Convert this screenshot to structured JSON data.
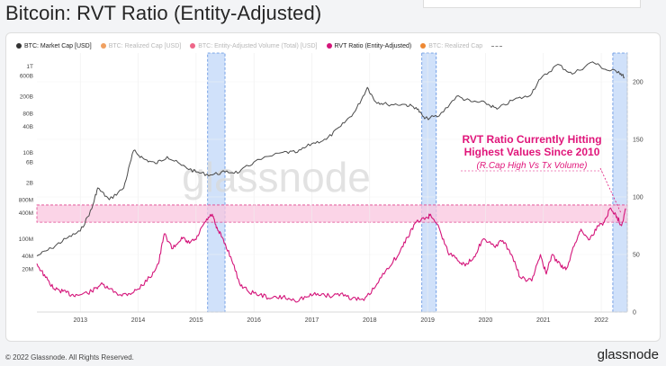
{
  "page": {
    "title": "Bitcoin: RVT Ratio (Entity-Adjusted)"
  },
  "legend": [
    {
      "label": "BTC: Market Cap [USD]",
      "color": "#333333",
      "active": true
    },
    {
      "label": "BTC: Realized Cap [USD]",
      "color": "#f0a060",
      "active": false
    },
    {
      "label": "BTC: Entity-Adjusted Volume (Total) [USD]",
      "color": "#ee6688",
      "active": false
    },
    {
      "label": "RVT Ratio (Entity-Adjusted)",
      "color": "#d4157a",
      "active": true
    },
    {
      "label": "BTC: Realized Cap",
      "color": "#ee8833",
      "active": false
    }
  ],
  "annotation": {
    "line1": "RVT Ratio Currently Hitting",
    "line2": "Highest Values Since 2010",
    "line3": "(R.Cap High Vs Tx Volume)"
  },
  "watermark": "glassnode",
  "footer": {
    "copyright": "© 2022 Glassnode. All Rights Reserved.",
    "brand": "glassnode"
  },
  "colors": {
    "market_cap": "#4a4a4a",
    "rvt": "#d4157a",
    "band_fill": "#f9c6df",
    "band_stroke": "#e0448f",
    "highlight_fill": "#a9c9f5",
    "highlight_stroke": "#5a8ee0",
    "annotation": "#e0157a"
  },
  "chart_data": {
    "type": "line",
    "title": "Bitcoin: RVT Ratio (Entity-Adjusted)",
    "x_tick_labels": [
      "2013",
      "2014",
      "2015",
      "2016",
      "2017",
      "2018",
      "2019",
      "2020",
      "2021",
      "2022"
    ],
    "x_range": [
      2012.25,
      2022.45
    ],
    "y_left": {
      "scale": "log",
      "range_usd": [
        2000000.0,
        2000000000000.0
      ],
      "tick_labels": [
        "20M",
        "40M",
        "100M",
        "400M",
        "800M",
        "2B",
        "6B",
        "10B",
        "40B",
        "80B",
        "200B",
        "600B",
        "1T"
      ],
      "tick_values": [
        20000000.0,
        40000000.0,
        100000000.0,
        400000000.0,
        800000000.0,
        2000000000.0,
        6000000000.0,
        10000000000.0,
        40000000000.0,
        80000000000.0,
        200000000000.0,
        600000000000.0,
        1000000000000.0
      ]
    },
    "y_right": {
      "scale": "linear",
      "range": [
        0,
        225
      ],
      "tick_labels": [
        "0",
        "50",
        "100",
        "150",
        "200"
      ],
      "tick_values": [
        0,
        50,
        100,
        150,
        200
      ]
    },
    "series": [
      {
        "name": "BTC: Market Cap [USD]",
        "axis": "left",
        "points": [
          [
            2012.25,
            40000000
          ],
          [
            2012.5,
            60000000
          ],
          [
            2012.75,
            100000000
          ],
          [
            2013.0,
            150000000
          ],
          [
            2013.2,
            500000000
          ],
          [
            2013.3,
            1500000000
          ],
          [
            2013.5,
            800000000
          ],
          [
            2013.75,
            1500000000
          ],
          [
            2013.92,
            11000000000
          ],
          [
            2014.1,
            7000000000
          ],
          [
            2014.3,
            5500000000
          ],
          [
            2014.5,
            8000000000
          ],
          [
            2014.75,
            5000000000
          ],
          [
            2015.0,
            3500000000
          ],
          [
            2015.25,
            3000000000
          ],
          [
            2015.5,
            3500000000
          ],
          [
            2015.75,
            3500000000
          ],
          [
            2016.0,
            6000000000
          ],
          [
            2016.5,
            10000000000
          ],
          [
            2016.75,
            10000000000
          ],
          [
            2017.0,
            16000000000
          ],
          [
            2017.25,
            20000000000
          ],
          [
            2017.5,
            40000000000
          ],
          [
            2017.75,
            90000000000
          ],
          [
            2017.96,
            320000000000
          ],
          [
            2018.1,
            150000000000
          ],
          [
            2018.3,
            130000000000
          ],
          [
            2018.6,
            130000000000
          ],
          [
            2018.8,
            110000000000
          ],
          [
            2018.95,
            60000000000
          ],
          [
            2019.2,
            70000000000
          ],
          [
            2019.5,
            200000000000
          ],
          [
            2019.75,
            150000000000
          ],
          [
            2020.0,
            140000000000
          ],
          [
            2020.2,
            100000000000
          ],
          [
            2020.5,
            170000000000
          ],
          [
            2020.75,
            200000000000
          ],
          [
            2020.95,
            500000000000
          ],
          [
            2021.25,
            1100000000000
          ],
          [
            2021.5,
            650000000000
          ],
          [
            2021.85,
            1250000000000
          ],
          [
            2022.1,
            800000000000
          ],
          [
            2022.3,
            750000000000
          ],
          [
            2022.4,
            550000000000
          ]
        ]
      },
      {
        "name": "RVT Ratio (Entity-Adjusted)",
        "axis": "right",
        "points": [
          [
            2012.25,
            42
          ],
          [
            2012.4,
            30
          ],
          [
            2012.55,
            20
          ],
          [
            2012.7,
            18
          ],
          [
            2012.85,
            15
          ],
          [
            2013.0,
            15
          ],
          [
            2013.2,
            18
          ],
          [
            2013.35,
            24
          ],
          [
            2013.5,
            20
          ],
          [
            2013.7,
            15
          ],
          [
            2013.85,
            16
          ],
          [
            2014.0,
            20
          ],
          [
            2014.2,
            30
          ],
          [
            2014.35,
            42
          ],
          [
            2014.45,
            68
          ],
          [
            2014.6,
            55
          ],
          [
            2014.75,
            65
          ],
          [
            2014.85,
            60
          ],
          [
            2015.0,
            63
          ],
          [
            2015.15,
            78
          ],
          [
            2015.28,
            85
          ],
          [
            2015.35,
            73
          ],
          [
            2015.45,
            65
          ],
          [
            2015.6,
            48
          ],
          [
            2015.75,
            25
          ],
          [
            2015.9,
            18
          ],
          [
            2016.1,
            15
          ],
          [
            2016.3,
            12
          ],
          [
            2016.5,
            13
          ],
          [
            2016.7,
            10
          ],
          [
            2016.9,
            13
          ],
          [
            2017.1,
            16
          ],
          [
            2017.3,
            14
          ],
          [
            2017.5,
            16
          ],
          [
            2017.7,
            12
          ],
          [
            2017.9,
            10
          ],
          [
            2018.1,
            22
          ],
          [
            2018.3,
            38
          ],
          [
            2018.5,
            50
          ],
          [
            2018.65,
            65
          ],
          [
            2018.8,
            78
          ],
          [
            2019.0,
            82
          ],
          [
            2019.05,
            85
          ],
          [
            2019.2,
            73
          ],
          [
            2019.35,
            52
          ],
          [
            2019.5,
            47
          ],
          [
            2019.65,
            40
          ],
          [
            2019.8,
            48
          ],
          [
            2019.95,
            63
          ],
          [
            2020.15,
            57
          ],
          [
            2020.3,
            62
          ],
          [
            2020.45,
            50
          ],
          [
            2020.6,
            30
          ],
          [
            2020.8,
            27
          ],
          [
            2020.95,
            50
          ],
          [
            2021.05,
            33
          ],
          [
            2021.15,
            50
          ],
          [
            2021.3,
            40
          ],
          [
            2021.4,
            38
          ],
          [
            2021.55,
            60
          ],
          [
            2021.65,
            72
          ],
          [
            2021.8,
            63
          ],
          [
            2021.95,
            75
          ],
          [
            2022.05,
            78
          ],
          [
            2022.15,
            90
          ],
          [
            2022.25,
            85
          ],
          [
            2022.35,
            75
          ],
          [
            2022.42,
            90
          ]
        ]
      }
    ],
    "highlight_periods": [
      {
        "start": 2015.2,
        "end": 2015.5
      },
      {
        "start": 2018.9,
        "end": 2019.15
      },
      {
        "start": 2022.2,
        "end": 2022.45
      }
    ],
    "threshold_band": {
      "axis": "right",
      "low": 78,
      "high": 93
    }
  }
}
